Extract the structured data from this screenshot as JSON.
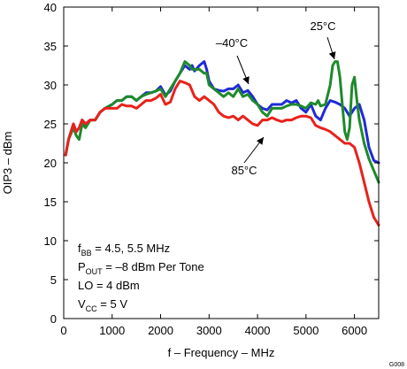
{
  "chart_data": {
    "type": "line",
    "xlabel": "f – Frequency – MHz",
    "ylabel": "OIP3 – dBm",
    "xlim": [
      0,
      6500
    ],
    "ylim": [
      0,
      40
    ],
    "x_ticks": [
      0,
      1000,
      2000,
      3000,
      4000,
      5000,
      6000
    ],
    "y_ticks": [
      0,
      5,
      10,
      15,
      20,
      25,
      30,
      35,
      40
    ],
    "grid": false,
    "series": [
      {
        "name": "–40°C",
        "color": "#1f2bd6",
        "x": [
          40,
          100,
          200,
          260,
          320,
          380,
          450,
          550,
          650,
          750,
          850,
          1000,
          1100,
          1200,
          1300,
          1400,
          1500,
          1600,
          1700,
          1800,
          1900,
          2000,
          2100,
          2200,
          2300,
          2400,
          2500,
          2600,
          2650,
          2700,
          2800,
          2900,
          2950,
          3000,
          3100,
          3200,
          3300,
          3400,
          3500,
          3600,
          3700,
          3800,
          3900,
          4000,
          4100,
          4200,
          4300,
          4400,
          4500,
          4600,
          4700,
          4800,
          4900,
          5000,
          5100,
          5200,
          5300,
          5400,
          5500,
          5600,
          5700,
          5800,
          5900,
          6000,
          6100,
          6200,
          6300,
          6400,
          6500
        ],
        "y": [
          21,
          23,
          25,
          24,
          24.5,
          25.5,
          25,
          25.5,
          25.5,
          26.5,
          27,
          27.5,
          28,
          28,
          28.5,
          28.5,
          28,
          28.5,
          29,
          29,
          29.2,
          29.8,
          28.7,
          29.2,
          30.5,
          31.5,
          32.5,
          32,
          32.5,
          31.8,
          32.5,
          33,
          32,
          30.5,
          29.5,
          29.3,
          29.2,
          29.5,
          29.5,
          30,
          29,
          29.3,
          28.5,
          27.5,
          27,
          26.8,
          27.5,
          27.5,
          27.5,
          28,
          27.7,
          28,
          27,
          26.5,
          27.5,
          26,
          25.5,
          27,
          28,
          27.8,
          27.5,
          27,
          26,
          27,
          27.5,
          25.5,
          22,
          20.3,
          20
        ]
      },
      {
        "name": "25°C",
        "color": "#1e8a2a",
        "x": [
          40,
          100,
          200,
          260,
          320,
          380,
          450,
          550,
          650,
          750,
          850,
          1000,
          1100,
          1200,
          1300,
          1400,
          1500,
          1600,
          1700,
          1800,
          1900,
          2000,
          2100,
          2200,
          2300,
          2400,
          2500,
          2600,
          2650,
          2700,
          2800,
          2900,
          2950,
          3000,
          3100,
          3200,
          3300,
          3400,
          3500,
          3600,
          3700,
          3800,
          3900,
          4000,
          4100,
          4200,
          4300,
          4400,
          4500,
          4600,
          4700,
          4800,
          4900,
          5000,
          5100,
          5200,
          5250,
          5300,
          5400,
          5500,
          5550,
          5600,
          5650,
          5700,
          5750,
          5800,
          5850,
          5900,
          5950,
          6000,
          6050,
          6100,
          6200,
          6300,
          6400,
          6500
        ],
        "y": [
          21,
          23,
          24.5,
          23.5,
          23,
          25,
          24.5,
          25.5,
          25.5,
          26.5,
          27,
          27.5,
          28,
          28,
          28.5,
          28.5,
          28,
          28.5,
          28.8,
          29,
          29.2,
          29.5,
          28.5,
          29.5,
          30.5,
          31.5,
          33,
          32.5,
          32,
          32,
          32,
          31.5,
          31.5,
          30,
          29.5,
          29,
          28.5,
          29,
          28.5,
          29.5,
          28.5,
          28.8,
          28,
          27.5,
          26.5,
          26,
          27,
          27,
          27,
          27.3,
          27.5,
          27.5,
          27.3,
          27,
          27.7,
          27.5,
          28,
          27.3,
          27.5,
          30,
          32.5,
          33,
          33,
          31,
          27.5,
          24,
          23,
          24.5,
          30,
          31,
          28,
          25.5,
          22.5,
          20.5,
          19,
          17.5
        ]
      },
      {
        "name": "85°C",
        "color": "#e8221b",
        "x": [
          40,
          100,
          200,
          260,
          320,
          380,
          450,
          550,
          650,
          750,
          850,
          1000,
          1100,
          1200,
          1300,
          1400,
          1500,
          1600,
          1700,
          1800,
          1900,
          2000,
          2100,
          2200,
          2300,
          2400,
          2500,
          2600,
          2700,
          2800,
          2900,
          3000,
          3100,
          3200,
          3300,
          3400,
          3500,
          3600,
          3700,
          3800,
          3900,
          4000,
          4100,
          4200,
          4300,
          4400,
          4500,
          4600,
          4700,
          4800,
          4900,
          5000,
          5100,
          5200,
          5300,
          5400,
          5500,
          5600,
          5700,
          5800,
          5900,
          6000,
          6100,
          6200,
          6300,
          6400,
          6500
        ],
        "y": [
          21,
          23,
          25,
          24,
          24.5,
          25.5,
          25,
          25.5,
          25.5,
          26.5,
          27,
          27,
          27,
          27.5,
          27.3,
          27.3,
          27,
          27.5,
          28,
          28,
          28.3,
          28.8,
          27.5,
          27.8,
          29.5,
          30.5,
          30.3,
          30,
          28.5,
          28,
          28.5,
          28,
          27.5,
          26.5,
          26,
          25.8,
          26,
          25.5,
          26,
          25.5,
          25,
          24.8,
          25.5,
          25.5,
          25.8,
          25.5,
          25.3,
          25.5,
          25.5,
          25.8,
          26,
          26,
          25.8,
          24.8,
          24.5,
          24.3,
          24,
          23.5,
          23,
          22.5,
          22.5,
          22,
          20,
          17.5,
          15,
          13,
          12
        ]
      }
    ],
    "annotations": [
      {
        "text": "–40°C"
      },
      {
        "text": "25°C"
      },
      {
        "text": "85°C"
      }
    ],
    "conditions": [
      {
        "main": "f",
        "sub": "BB",
        "rest": " = 4.5, 5.5 MHz"
      },
      {
        "main": "P",
        "sub": "OUT",
        "rest": " = –8 dBm Per Tone"
      },
      {
        "main": "LO = 4 dBm",
        "sub": "",
        "rest": ""
      },
      {
        "main": "V",
        "sub": "CC",
        "rest": " = 5 V"
      }
    ],
    "figure_id": "G008"
  }
}
